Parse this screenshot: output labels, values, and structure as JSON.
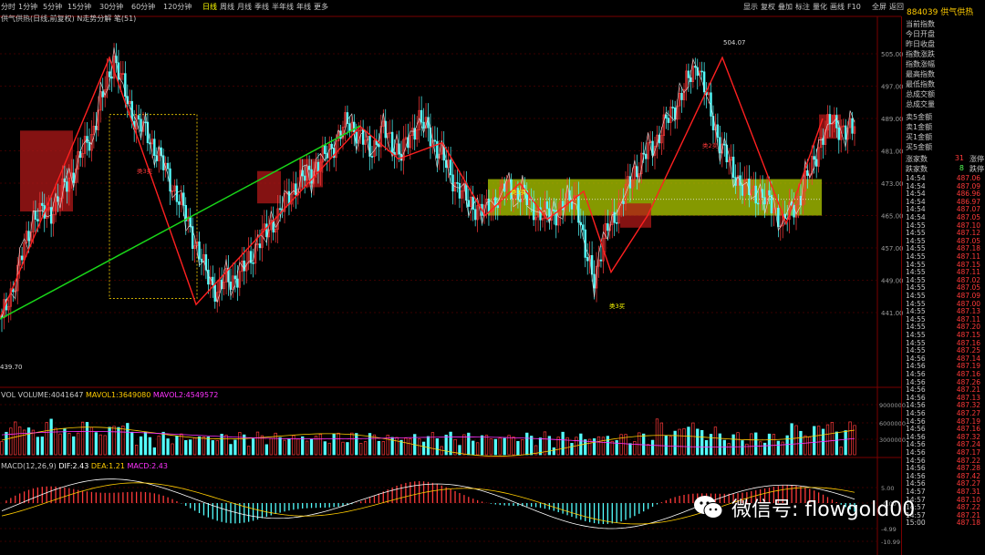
{
  "toolbar": {
    "periods": [
      "分时",
      "1分钟",
      "5分钟",
      "15分钟",
      "30分钟",
      "60分钟",
      "120分钟",
      "日线",
      "周线",
      "月线",
      "季线",
      "半年线",
      "年线",
      "更多"
    ],
    "active_period": "日线",
    "right_buttons": [
      "显示",
      "复权",
      "叠加",
      "标注",
      "量化",
      "画线",
      "F10",
      "全屏",
      "返回"
    ],
    "code": "884039",
    "name": "供气供热"
  },
  "chart": {
    "title": "供气供热(日线,前复权) N走势分解 笔(51)",
    "price_ticks": [
      "505.00",
      "497.00",
      "489.00",
      "481.00",
      "473.00",
      "465.00",
      "457.00",
      "449.00",
      "441.00"
    ],
    "high_label": "504.07",
    "low_label": "439.70",
    "annotations": [
      "类3买",
      "类3买",
      "类2卖",
      "类3卖"
    ],
    "vol_ticks": [
      "9000000",
      "6000000",
      "3000000"
    ],
    "macd_ticks": [
      "5.00",
      "-0.00",
      "-4.99",
      "-10.99"
    ]
  },
  "volume": {
    "label": "VOL VOLUME:4041647",
    "mavol1": "MAVOL1:3649080",
    "mavol2": "MAVOL2:4549572"
  },
  "macd": {
    "label": "MACD(12,26,9)",
    "dif": "DIF:2.43",
    "dea": "DEA:1.21",
    "macd": "MACD:2.43"
  },
  "panel": {
    "items": [
      "当前指数",
      "今日开盘",
      "昨日收盘",
      "指数涨跌",
      "指数涨幅",
      "最高指数",
      "最低指数",
      "总成交额",
      "总成交量"
    ],
    "orders": [
      "卖5金额",
      "卖1金额",
      "买1金额",
      "买5金额"
    ],
    "up_label": "涨家数",
    "up_count": "31",
    "up_tail": "涨停",
    "down_label": "跌家数",
    "down_count": "8",
    "down_tail": "跌停",
    "ticks": [
      [
        "14:54",
        "487.06"
      ],
      [
        "14:54",
        "487.09"
      ],
      [
        "14:54",
        "486.96"
      ],
      [
        "14:54",
        "486.97"
      ],
      [
        "14:54",
        "487.07"
      ],
      [
        "14:54",
        "487.05"
      ],
      [
        "14:55",
        "487.10"
      ],
      [
        "14:55",
        "487.12"
      ],
      [
        "14:55",
        "487.05"
      ],
      [
        "14:55",
        "487.18"
      ],
      [
        "14:55",
        "487.11"
      ],
      [
        "14:55",
        "487.15"
      ],
      [
        "14:55",
        "487.11"
      ],
      [
        "14:55",
        "487.02"
      ],
      [
        "14:55",
        "487.05"
      ],
      [
        "14:55",
        "487.09"
      ],
      [
        "14:55",
        "487.00"
      ],
      [
        "14:55",
        "487.13"
      ],
      [
        "14:55",
        "487.11"
      ],
      [
        "14:55",
        "487.20"
      ],
      [
        "14:55",
        "487.15"
      ],
      [
        "14:55",
        "487.16"
      ],
      [
        "14:55",
        "487.25"
      ],
      [
        "14:56",
        "487.14"
      ],
      [
        "14:56",
        "487.19"
      ],
      [
        "14:56",
        "487.16"
      ],
      [
        "14:56",
        "487.26"
      ],
      [
        "14:56",
        "487.21"
      ],
      [
        "14:56",
        "487.13"
      ],
      [
        "14:56",
        "487.32"
      ],
      [
        "14:56",
        "487.27"
      ],
      [
        "14:56",
        "487.19"
      ],
      [
        "14:56",
        "487.16"
      ],
      [
        "14:56",
        "487.32"
      ],
      [
        "14:56",
        "487.24"
      ],
      [
        "14:56",
        "487.17"
      ],
      [
        "14:56",
        "487.22"
      ],
      [
        "14:56",
        "487.28"
      ],
      [
        "14:56",
        "487.42"
      ],
      [
        "14:56",
        "487.27"
      ],
      [
        "14:57",
        "487.31"
      ],
      [
        "14:57",
        "487.10"
      ],
      [
        "14:57",
        "487.22"
      ],
      [
        "14:57",
        "487.21"
      ],
      [
        "15:00",
        "487.18"
      ]
    ]
  },
  "watermark": {
    "text": "微信号: flowgold00"
  },
  "colors": {
    "up": "#ff3a3a",
    "down": "#54ffff",
    "accent": "#ffff00",
    "zone": "#b8d400",
    "trend": "#19d619"
  }
}
